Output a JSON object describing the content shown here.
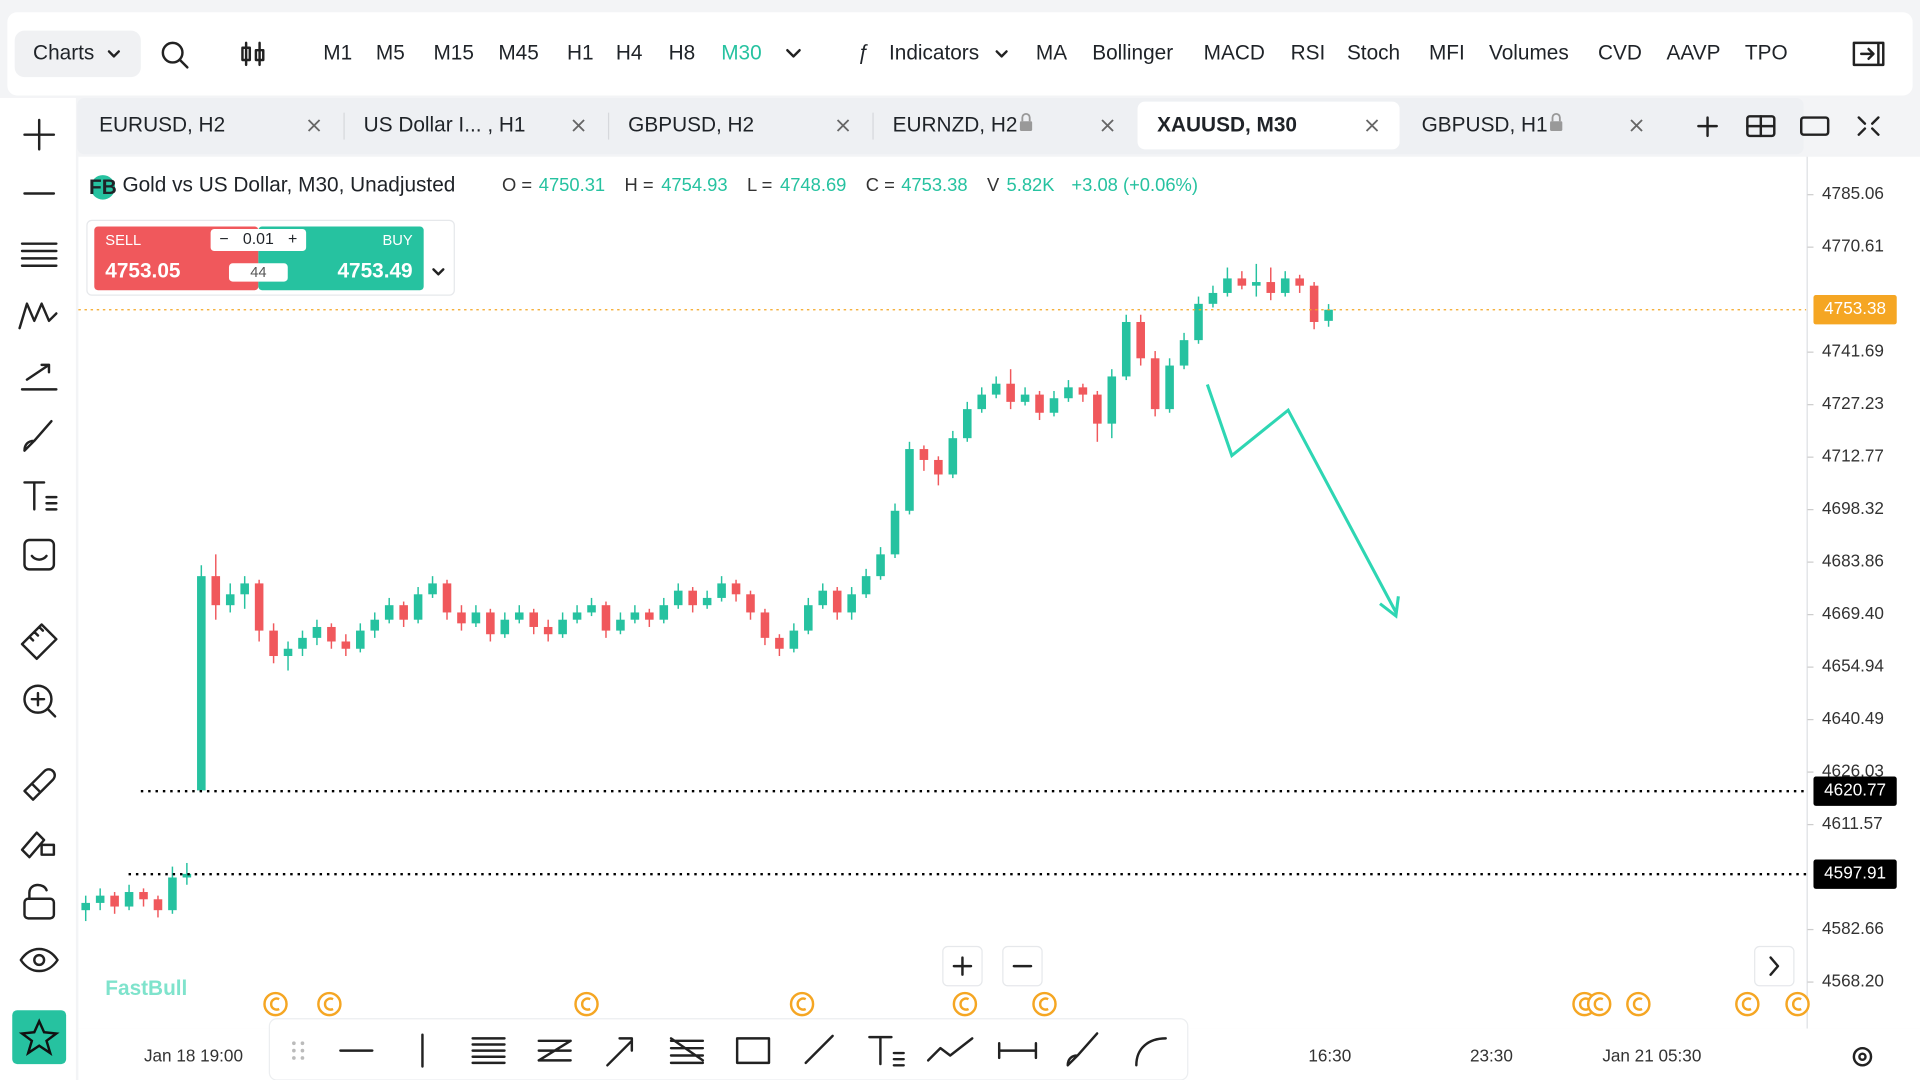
{
  "toolbar": {
    "charts": "Charts",
    "timeframes": [
      "M1",
      "M5",
      "M15",
      "M45",
      "H1",
      "H4",
      "H8",
      "M30"
    ],
    "indicators_label": "Indicators",
    "indicators": [
      "MA",
      "Bollinger",
      "MACD",
      "RSI",
      "Stoch",
      "MFI",
      "Volumes",
      "CVD",
      "AAVP",
      "TPO"
    ]
  },
  "tabs": [
    {
      "label": "EURUSD, H2",
      "locked": false
    },
    {
      "label": "US Dollar I...  , H1",
      "locked": false
    },
    {
      "label": "GBPUSD, H2",
      "locked": false
    },
    {
      "label": "EURNZD, H2",
      "locked": true
    },
    {
      "label": "XAUUSD, M30",
      "locked": false,
      "active": true
    },
    {
      "label": "GBPUSD, H1",
      "locked": true
    }
  ],
  "legend": {
    "symbol": "Gold vs US Dollar, M30, Unadjusted",
    "o_label": "O =",
    "o": 4750.31,
    "h_label": "H =",
    "h": 4754.93,
    "l_label": "L =",
    "l": 4748.69,
    "c_label": "C =",
    "c": 4753.38,
    "v_label": "V",
    "v": "5.82K",
    "change": "+3.08 (+0.06%)"
  },
  "trade": {
    "sell_label": "SELL",
    "sell": 4753.05,
    "buy_label": "BUY",
    "buy": 4753.49,
    "lot": 0.01,
    "spread": 44
  },
  "watermark": "FastBull",
  "chart_data": {
    "type": "candlestick",
    "up_color": "#26c2a0",
    "down_color": "#f0585c",
    "ylim": [
      4555.39,
      4794.84
    ],
    "yticks": [
      4785.06,
      4770.61,
      4741.69,
      4727.23,
      4712.77,
      4698.32,
      4683.86,
      {
        "value": 4669.4,
        "label": "4669.40"
      },
      4654.94,
      4640.49,
      4626.03,
      4611.57,
      4582.66,
      {
        "value": 4568.2,
        "label": "4568.20"
      }
    ],
    "price_lines": [
      {
        "value": 4753.38,
        "color": "#f5a623"
      },
      {
        "value": 4620.77,
        "color": "#000000"
      },
      {
        "value": 4597.91,
        "color": "#000000"
      }
    ],
    "x_labels": [
      "Jan 18 19:00",
      "16:30",
      "23:30",
      "Jan 21 05:30"
    ],
    "candles": [
      [
        4588,
        4592,
        4585,
        4590
      ],
      [
        4590,
        4594,
        4588,
        4592
      ],
      [
        4592,
        4593,
        4587,
        4589
      ],
      [
        4589,
        4595,
        4588,
        4593
      ],
      [
        4593,
        4594,
        4589,
        4591
      ],
      [
        4591,
        4592,
        4586,
        4588
      ],
      [
        4588,
        4600,
        4587,
        4597
      ],
      [
        4597,
        4601,
        4595,
        4598
      ],
      [
        4621,
        4683,
        4620.77,
        4680
      ],
      [
        4680,
        4686,
        4668,
        4672
      ],
      [
        4672,
        4678,
        4670,
        4675
      ],
      [
        4675,
        4680,
        4671,
        4678
      ],
      [
        4678,
        4679,
        4662,
        4665
      ],
      [
        4665,
        4667,
        4656,
        4658
      ],
      [
        4658,
        4662,
        4654,
        4660
      ],
      [
        4660,
        4665,
        4658,
        4663
      ],
      [
        4663,
        4668,
        4661,
        4666
      ],
      [
        4666,
        4667,
        4660,
        4662
      ],
      [
        4662,
        4664,
        4658,
        4660
      ],
      [
        4660,
        4667,
        4659,
        4665
      ],
      [
        4665,
        4670,
        4663,
        4668
      ],
      [
        4668,
        4674,
        4667,
        4672
      ],
      [
        4672,
        4673,
        4666,
        4668
      ],
      [
        4668,
        4677,
        4667,
        4675
      ],
      [
        4675,
        4680,
        4674,
        4678
      ],
      [
        4678,
        4679,
        4668,
        4670
      ],
      [
        4670,
        4672,
        4665,
        4667
      ],
      [
        4667,
        4672,
        4666,
        4670
      ],
      [
        4670,
        4671,
        4662,
        4664
      ],
      [
        4664,
        4670,
        4663,
        4668
      ],
      [
        4668,
        4672,
        4667,
        4670
      ],
      [
        4670,
        4671,
        4664,
        4666
      ],
      [
        4666,
        4668,
        4662,
        4664
      ],
      [
        4664,
        4670,
        4663,
        4668
      ],
      [
        4668,
        4672,
        4667,
        4670
      ],
      [
        4670,
        4674,
        4669,
        4672
      ],
      [
        4672,
        4673,
        4663,
        4665
      ],
      [
        4665,
        4670,
        4664,
        4668
      ],
      [
        4668,
        4672,
        4667,
        4670
      ],
      [
        4670,
        4671,
        4666,
        4668
      ],
      [
        4668,
        4674,
        4667,
        4672
      ],
      [
        4672,
        4678,
        4671,
        4676
      ],
      [
        4676,
        4677,
        4670,
        4672
      ],
      [
        4672,
        4676,
        4671,
        4674
      ],
      [
        4674,
        4680,
        4673,
        4678
      ],
      [
        4678,
        4679,
        4673,
        4675
      ],
      [
        4675,
        4676,
        4668,
        4670
      ],
      [
        4670,
        4671,
        4661,
        4663
      ],
      [
        4663,
        4664,
        4658,
        4660
      ],
      [
        4660,
        4667,
        4659,
        4665
      ],
      [
        4665,
        4674,
        4664,
        4672
      ],
      [
        4672,
        4678,
        4671,
        4676
      ],
      [
        4676,
        4677,
        4668,
        4670
      ],
      [
        4670,
        4677,
        4668,
        4675
      ],
      [
        4675,
        4682,
        4674,
        4680
      ],
      [
        4680,
        4688,
        4679,
        4686
      ],
      [
        4686,
        4700,
        4685,
        4698
      ],
      [
        4698,
        4717,
        4697,
        4715
      ],
      [
        4715,
        4716,
        4709,
        4712
      ],
      [
        4712,
        4713,
        4705,
        4708
      ],
      [
        4708,
        4720,
        4707,
        4718
      ],
      [
        4718,
        4728,
        4717,
        4726
      ],
      [
        4726,
        4732,
        4725,
        4730
      ],
      [
        4730,
        4735,
        4729,
        4733
      ],
      [
        4733,
        4737,
        4726,
        4728
      ],
      [
        4728,
        4732,
        4727,
        4730
      ],
      [
        4730,
        4731,
        4723,
        4725
      ],
      [
        4725,
        4731,
        4724,
        4729
      ],
      [
        4729,
        4734,
        4728,
        4732
      ],
      [
        4732,
        4733,
        4728,
        4730
      ],
      [
        4730,
        4731,
        4717,
        4722
      ],
      [
        4722,
        4737,
        4718,
        4735
      ],
      [
        4735,
        4752,
        4734,
        4750
      ],
      [
        4750,
        4752,
        4738,
        4740
      ],
      [
        4740,
        4742,
        4724,
        4726
      ],
      [
        4726,
        4740,
        4725,
        4738
      ],
      [
        4738,
        4747,
        4737,
        4745
      ],
      [
        4745,
        4757,
        4744,
        4755
      ],
      [
        4755,
        4760,
        4754,
        4758
      ],
      [
        4758,
        4765,
        4757,
        4762
      ],
      [
        4762,
        4764,
        4759,
        4760
      ],
      [
        4760,
        4766,
        4757,
        4761
      ],
      [
        4761,
        4765,
        4756,
        4758
      ],
      [
        4758,
        4764,
        4757,
        4762
      ],
      [
        4762,
        4763,
        4758,
        4760
      ],
      [
        4760,
        4761,
        4748,
        4750
      ],
      [
        4750.31,
        4754.93,
        4748.69,
        4753.38
      ]
    ]
  }
}
